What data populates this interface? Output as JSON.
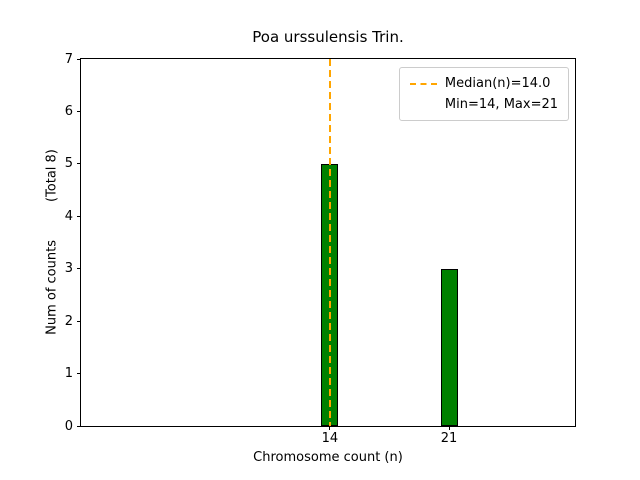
{
  "chart_data": {
    "type": "bar",
    "title": "Poa urssulensis Trin.",
    "xlabel": "Chromosome count (n)",
    "ylabel": "Num of counts",
    "ylabel_secondary": "(Total 8)",
    "categories": [
      "14",
      "21"
    ],
    "values": [
      5,
      3
    ],
    "total_counts": 8,
    "median": 14.0,
    "min": 14,
    "max": 21,
    "bar_color": "#008000",
    "bar_edge_color": "#000000",
    "median_line_color": "#FFA500",
    "xlim": [
      -0.62,
      28.4
    ],
    "ylim": [
      0,
      7
    ],
    "yticks": [
      "0",
      "1",
      "2",
      "3",
      "4",
      "5",
      "6",
      "7"
    ],
    "xticks": [
      14,
      21
    ],
    "bar_width_units": 1.0,
    "grid": false,
    "legend": {
      "position": "upper right",
      "entries": [
        {
          "label": "Median(n)=14.0",
          "handle": "dashed-line"
        },
        {
          "label": "Min=14, Max=21",
          "handle": "none"
        }
      ]
    }
  }
}
